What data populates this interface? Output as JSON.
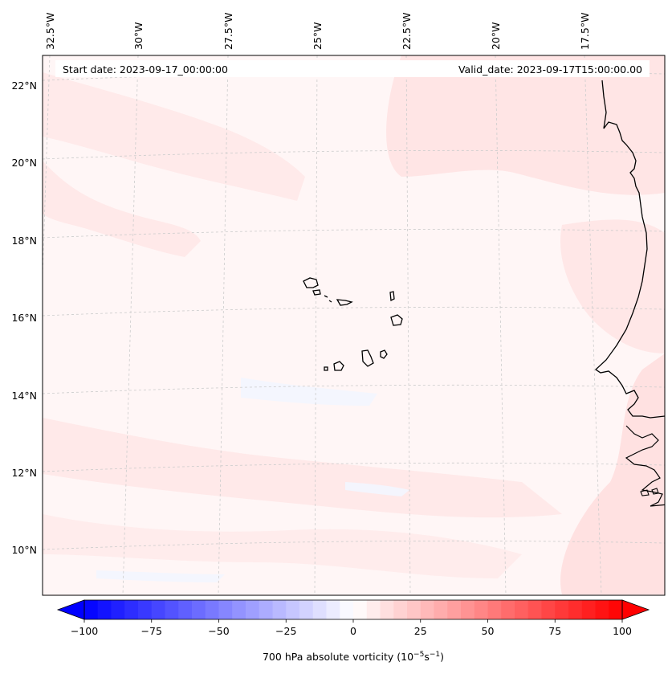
{
  "map": {
    "start_date_text": "Start date: 2023-09-17_00:00:00",
    "valid_date_text": "Valid_date: 2023-09-17T15:00:00.00",
    "longitude_labels": [
      "32.5°W",
      "30°W",
      "27.5°W",
      "25°W",
      "22.5°W",
      "20°W",
      "17.5°W"
    ],
    "latitude_labels": [
      "22°N",
      "20°N",
      "18°N",
      "16°N",
      "14°N",
      "12°N",
      "10°N"
    ],
    "field_colors": {
      "background": "#fff6f6",
      "light_pink": "#ffe8e8",
      "pink": "#ffdcdc",
      "faint_blue": "#f3f6ff"
    },
    "coastline_color": "#000000",
    "gridline_color": "#cccccc"
  },
  "colorbar": {
    "label": "700 hPa absolute vorticity (10⁻⁵s⁻¹)",
    "label_text": "700 hPa absolute vorticity (10",
    "label_exp1": "−5",
    "label_mid": "s",
    "label_exp2": "−1",
    "label_close": ")",
    "min": -100,
    "max": 100,
    "ticks": [
      "−100",
      "−75",
      "−50",
      "−25",
      "0",
      "25",
      "50",
      "75",
      "100"
    ],
    "cmap_low": "#0000ff",
    "cmap_mid": "#ffffff",
    "cmap_high": "#ff0000",
    "extend": "both"
  }
}
